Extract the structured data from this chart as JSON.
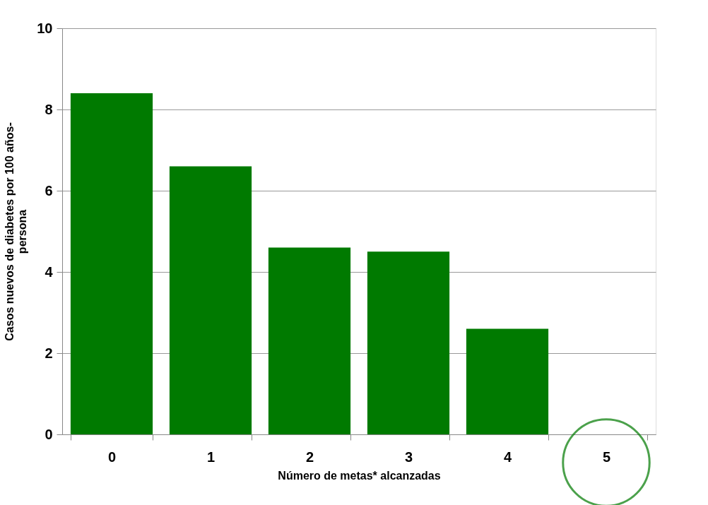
{
  "chart_data": {
    "type": "bar",
    "xlabel": "Número de metas* alcanzadas",
    "ylabel": "Casos nuevos de diabetes por 100 años-persona",
    "categories": [
      "0",
      "1",
      "2",
      "3",
      "4",
      "5"
    ],
    "values": [
      8.4,
      6.6,
      4.6,
      4.5,
      2.6,
      0
    ],
    "color": "#007a00",
    "ylim": [
      0,
      10
    ],
    "yticks": [
      0,
      2,
      4,
      6,
      8,
      10
    ],
    "grid": "y"
  }
}
